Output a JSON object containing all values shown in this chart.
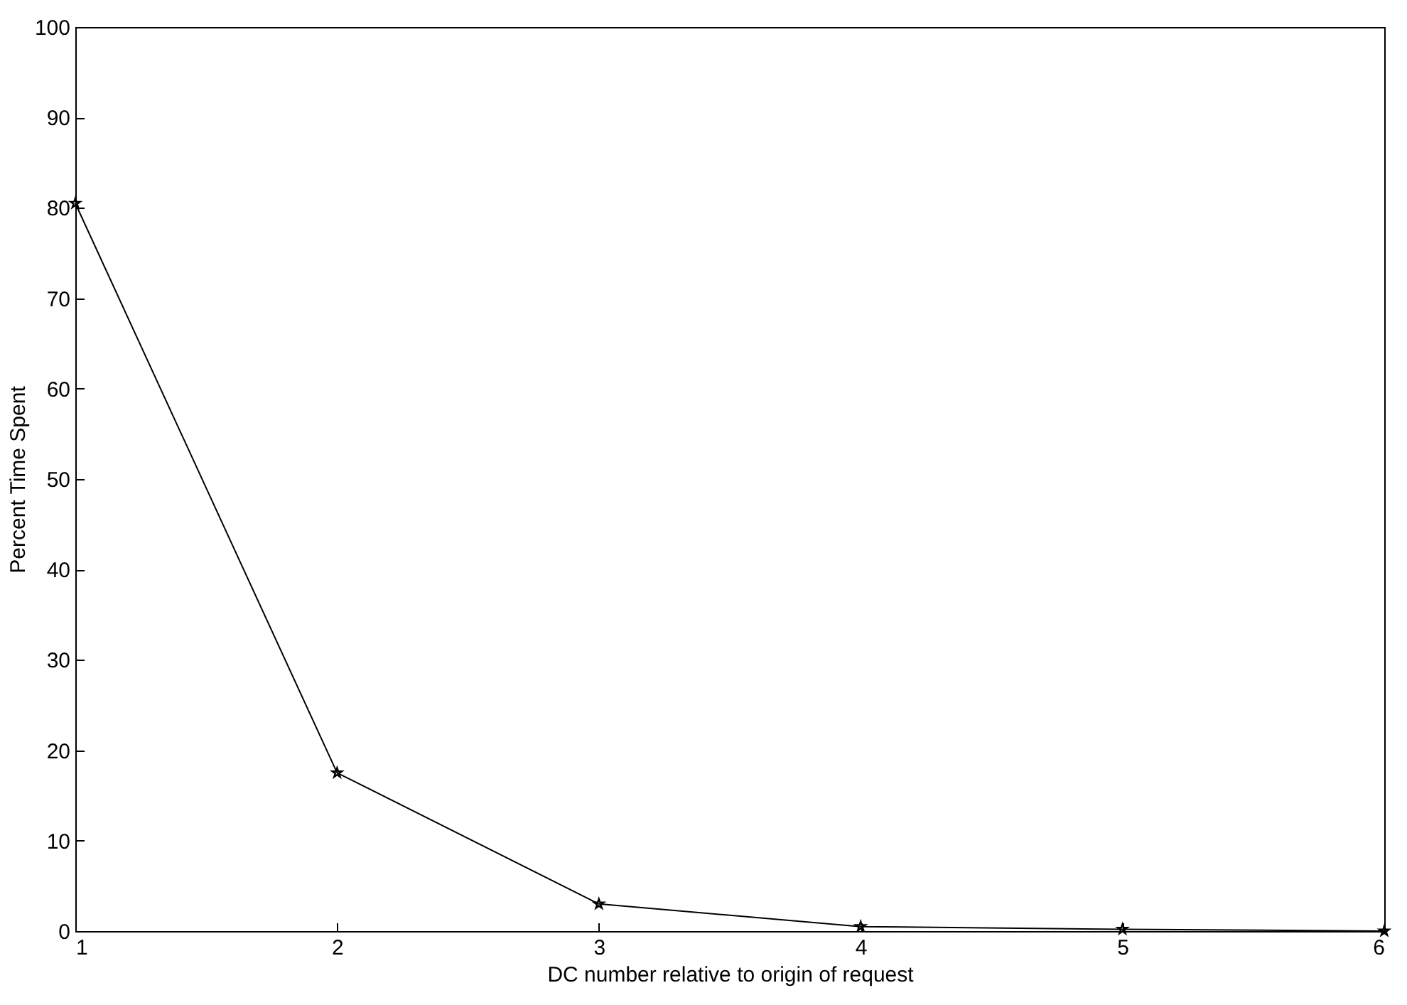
{
  "chart_data": {
    "type": "line",
    "xlabel": "DC number relative to origin of request",
    "ylabel": "Percent Time Spent",
    "x": [
      1,
      2,
      3,
      4,
      5,
      6
    ],
    "series": [
      {
        "color": "#000000",
        "values": [
          80.5,
          17.5,
          3,
          0.5,
          0.2,
          0
        ]
      }
    ],
    "xlim": [
      1,
      6
    ],
    "xticks": [
      1,
      2,
      3,
      4,
      5,
      6
    ],
    "ylim": [
      0,
      100
    ],
    "yticks": [
      0,
      10,
      20,
      30,
      40,
      50,
      60,
      70,
      80,
      90,
      100
    ],
    "grid": false,
    "legend": false,
    "marker": "star",
    "line_style": "solid"
  }
}
